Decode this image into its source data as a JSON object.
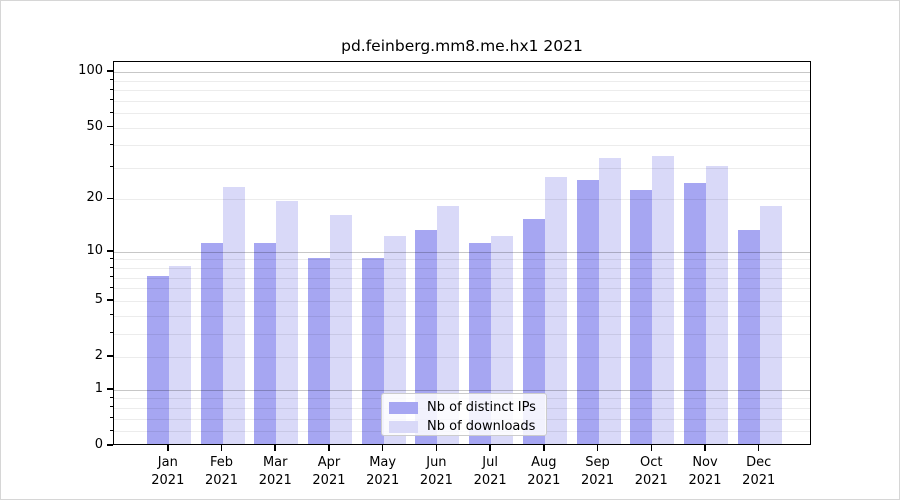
{
  "figure": {
    "background": "#ffffff",
    "border_color": "#d6d6d6",
    "axis_color": "#000000",
    "gridline_major_color": "#c6c6c6",
    "gridline_minor_color": "#ebebeb"
  },
  "chart_data": {
    "type": "bar",
    "title": "pd.feinberg.mm8.me.hx1 2021",
    "categories": [
      "Jan",
      "Feb",
      "Mar",
      "Apr",
      "May",
      "Jun",
      "Jul",
      "Aug",
      "Sep",
      "Oct",
      "Nov",
      "Dec"
    ],
    "year": "2021",
    "series": [
      {
        "name": "Nb of distinct IPs",
        "color": "#a6a6f2",
        "values": [
          7,
          11,
          11,
          9,
          9,
          13,
          11,
          15,
          25,
          22,
          24,
          13
        ]
      },
      {
        "name": "Nb of downloads",
        "color": "#d9d9f8",
        "values": [
          8,
          23,
          19,
          16,
          12,
          18,
          12,
          26,
          33,
          34,
          30,
          18
        ]
      }
    ],
    "xlabel": "",
    "ylabel": "",
    "y_scale": "log1p",
    "ylim": [
      0,
      115
    ],
    "y_ticks": [
      0,
      1,
      2,
      5,
      10,
      20,
      50,
      100
    ],
    "y_major_gridlines": [
      1,
      10,
      100
    ],
    "y_minor_gridlines": [
      0.2,
      0.4,
      0.6,
      0.8,
      2,
      3,
      4,
      5,
      6,
      7,
      8,
      9,
      20,
      30,
      40,
      50,
      60,
      70,
      80,
      90
    ],
    "grid": "on",
    "legend_position": "lower center"
  }
}
